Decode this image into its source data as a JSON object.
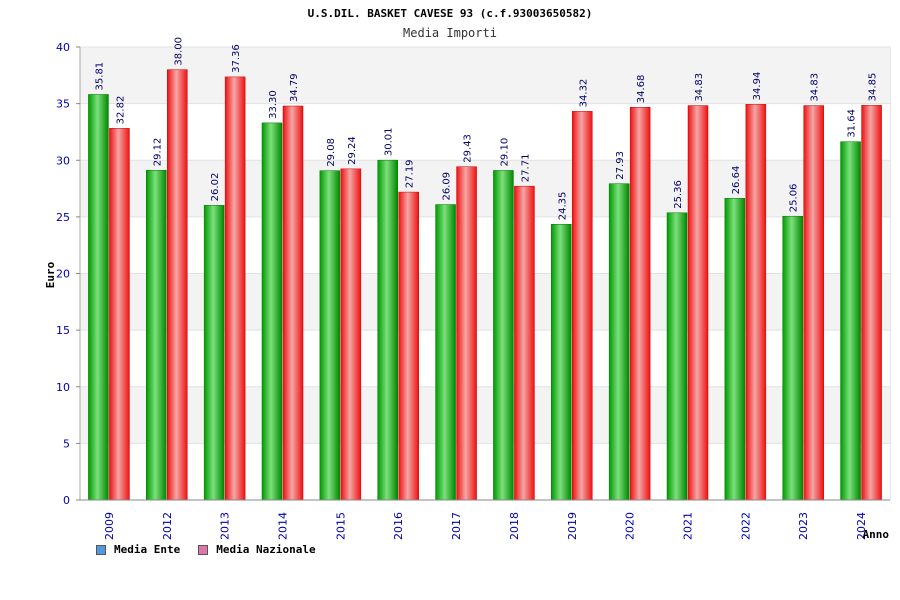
{
  "chart_data": {
    "type": "bar",
    "title": "U.S.DIL. BASKET CAVESE 93 (c.f.93003650582)",
    "subtitle": "Media Importi",
    "xlabel": "Anno",
    "ylabel": "Euro",
    "ylim": [
      0,
      40
    ],
    "yticks": [
      0,
      5,
      10,
      15,
      20,
      25,
      30,
      35,
      40
    ],
    "grid": true,
    "legend_position": "bottom-left",
    "categories": [
      "2009",
      "2012",
      "2013",
      "2014",
      "2015",
      "2016",
      "2017",
      "2018",
      "2019",
      "2020",
      "2021",
      "2022",
      "2023",
      "2024"
    ],
    "series": [
      {
        "name": "Media Ente",
        "color": "#22aa22",
        "legend_color": "#5599dd",
        "values": [
          35.81,
          29.12,
          26.02,
          33.3,
          29.08,
          30.01,
          26.09,
          29.1,
          24.35,
          27.93,
          25.36,
          26.64,
          25.06,
          31.64
        ],
        "labels": [
          "35.81",
          "29.12",
          "26.02",
          "33.30",
          "29.08",
          "30.01",
          "26.09",
          "29.10",
          "24.35",
          "27.93",
          "25.36",
          "26.64",
          "25.06",
          "31.64"
        ]
      },
      {
        "name": "Media Nazionale",
        "color": "#ee2222",
        "legend_color": "#dd77aa",
        "values": [
          32.82,
          38.0,
          37.36,
          34.79,
          29.24,
          27.19,
          29.43,
          27.71,
          34.32,
          34.68,
          34.83,
          34.94,
          34.83,
          34.85
        ],
        "labels": [
          "32.82",
          "38.00",
          "37.36",
          "34.79",
          "29.24",
          "27.19",
          "29.43",
          "27.71",
          "34.32",
          "34.68",
          "34.83",
          "34.94",
          "34.83",
          "34.85"
        ]
      }
    ]
  }
}
